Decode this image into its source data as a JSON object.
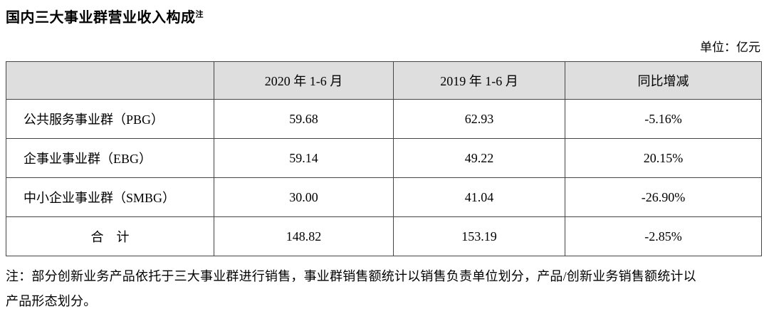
{
  "page": {
    "title": "国内三大事业群营业收入构成",
    "title_note_marker": "注",
    "unit_label": "单位：亿元"
  },
  "table": {
    "header": {
      "col_label": "",
      "col_2020": "2020 年 1-6 月",
      "col_2019": "2019 年 1-6 月",
      "col_change": "同比增减"
    },
    "rows": [
      {
        "label": "公共服务事业群（PBG）",
        "v2020": "59.68",
        "v2019": "62.93",
        "change": "-5.16%"
      },
      {
        "label": "企事业事业群（EBG）",
        "v2020": "59.14",
        "v2019": "49.22",
        "change": "20.15%"
      },
      {
        "label": "中小企业事业群（SMBG）",
        "v2020": "30.00",
        "v2019": "41.04",
        "change": "-26.90%"
      }
    ],
    "total": {
      "label": "合　计",
      "v2020": "148.82",
      "v2019": "153.19",
      "change": "-2.85%"
    }
  },
  "footnote": {
    "lines": [
      "注：部分创新业务产品依托于三大事业群进行销售，事业群销售额统计以销售负责单位划分，产品/创新业务销售额统计以",
      "产品形态划分。"
    ]
  },
  "colors": {
    "header_background": "#dedede",
    "border": "#454545",
    "text": "#000000",
    "page_background": "#ffffff"
  }
}
